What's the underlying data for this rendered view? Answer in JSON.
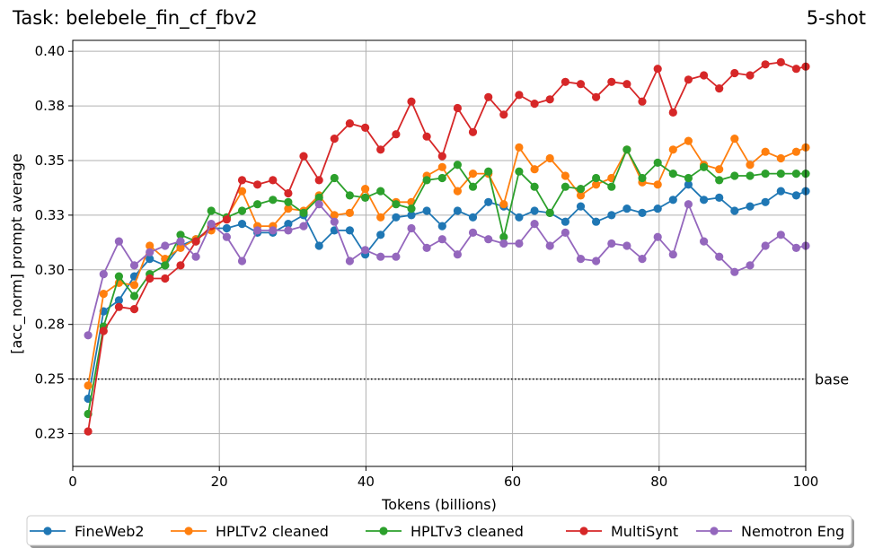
{
  "chart_data": {
    "type": "line",
    "title": "Task: belebele_fin_cf_fbv2",
    "subtitle": "5-shot",
    "xlabel": "Tokens (billions)",
    "ylabel": "[acc_norm] prompt average",
    "xlim": [
      0,
      100
    ],
    "ylim": [
      0.21,
      0.405
    ],
    "xticks": [
      0,
      20,
      40,
      60,
      80,
      100
    ],
    "yticks": [
      0.225,
      0.25,
      0.275,
      0.3,
      0.325,
      0.35,
      0.375,
      0.4
    ],
    "ytick_labels": [
      "0.23",
      "0.25",
      "0.28",
      "0.30",
      "0.33",
      "0.35",
      "0.38",
      "0.40"
    ],
    "grid": true,
    "legend_position": "bottom",
    "baseline": {
      "value": 0.25,
      "label": "base"
    },
    "x": [
      2.1,
      4.2,
      6.3,
      8.4,
      10.5,
      12.6,
      14.7,
      16.8,
      18.9,
      21.0,
      23.1,
      25.2,
      27.3,
      29.4,
      31.5,
      33.6,
      35.7,
      37.8,
      39.9,
      42.0,
      44.1,
      46.2,
      48.3,
      50.4,
      52.5,
      54.6,
      56.7,
      58.8,
      60.9,
      63.0,
      65.1,
      67.2,
      69.3,
      71.4,
      73.5,
      75.6,
      77.7,
      79.8,
      81.9,
      84.0,
      86.1,
      88.2,
      90.3,
      92.4,
      94.5,
      96.6,
      98.7,
      100.0
    ],
    "series": [
      {
        "name": "FineWeb2",
        "color": "#1f77b4",
        "values": [
          0.241,
          0.281,
          0.286,
          0.297,
          0.305,
          0.302,
          0.311,
          0.314,
          0.319,
          0.319,
          0.321,
          0.317,
          0.317,
          0.321,
          0.325,
          0.311,
          0.318,
          0.318,
          0.307,
          0.316,
          0.324,
          0.325,
          0.327,
          0.32,
          0.327,
          0.324,
          0.331,
          0.329,
          0.324,
          0.327,
          0.326,
          0.322,
          0.329,
          0.322,
          0.325,
          0.328,
          0.326,
          0.328,
          0.332,
          0.339,
          0.332,
          0.333,
          0.327,
          0.329,
          0.331,
          0.336,
          0.334,
          0.336
        ]
      },
      {
        "name": "HPLTv2 cleaned",
        "color": "#ff7f0e",
        "values": [
          0.247,
          0.289,
          0.294,
          0.293,
          0.311,
          0.305,
          0.31,
          0.314,
          0.318,
          0.324,
          0.336,
          0.32,
          0.32,
          0.328,
          0.327,
          0.334,
          0.325,
          0.326,
          0.337,
          0.324,
          0.331,
          0.331,
          0.343,
          0.347,
          0.336,
          0.344,
          0.344,
          0.33,
          0.356,
          0.346,
          0.351,
          0.343,
          0.334,
          0.339,
          0.342,
          0.355,
          0.34,
          0.339,
          0.355,
          0.359,
          0.348,
          0.346,
          0.36,
          0.348,
          0.354,
          0.351,
          0.354,
          0.356
        ]
      },
      {
        "name": "HPLTv3 cleaned",
        "color": "#2ca02c",
        "values": [
          0.234,
          0.274,
          0.297,
          0.288,
          0.298,
          0.302,
          0.316,
          0.313,
          0.327,
          0.324,
          0.327,
          0.33,
          0.332,
          0.331,
          0.326,
          0.333,
          0.342,
          0.334,
          0.333,
          0.336,
          0.33,
          0.328,
          0.341,
          0.342,
          0.348,
          0.338,
          0.345,
          0.315,
          0.345,
          0.338,
          0.326,
          0.338,
          0.337,
          0.342,
          0.338,
          0.355,
          0.342,
          0.349,
          0.344,
          0.342,
          0.347,
          0.341,
          0.343,
          0.343,
          0.344,
          0.344,
          0.344,
          0.344
        ]
      },
      {
        "name": "MultiSynt",
        "color": "#d62728",
        "values": [
          0.226,
          0.272,
          0.283,
          0.282,
          0.296,
          0.296,
          0.302,
          0.313,
          0.32,
          0.323,
          0.341,
          0.339,
          0.341,
          0.335,
          0.352,
          0.341,
          0.36,
          0.367,
          0.365,
          0.355,
          0.362,
          0.377,
          0.361,
          0.352,
          0.374,
          0.363,
          0.379,
          0.371,
          0.38,
          0.376,
          0.378,
          0.386,
          0.385,
          0.379,
          0.386,
          0.385,
          0.377,
          0.392,
          0.372,
          0.387,
          0.389,
          0.383,
          0.39,
          0.389,
          0.394,
          0.395,
          0.392,
          0.393
        ]
      },
      {
        "name": "Nemotron Eng",
        "color": "#9467bd",
        "values": [
          0.27,
          0.298,
          0.313,
          0.302,
          0.308,
          0.311,
          0.313,
          0.306,
          0.321,
          0.315,
          0.304,
          0.318,
          0.318,
          0.318,
          0.32,
          0.33,
          0.322,
          0.304,
          0.309,
          0.306,
          0.306,
          0.319,
          0.31,
          0.314,
          0.307,
          0.317,
          0.314,
          0.312,
          0.312,
          0.321,
          0.311,
          0.317,
          0.305,
          0.304,
          0.312,
          0.311,
          0.305,
          0.315,
          0.307,
          0.33,
          0.313,
          0.306,
          0.299,
          0.302,
          0.311,
          0.316,
          0.31,
          0.311
        ]
      }
    ]
  }
}
